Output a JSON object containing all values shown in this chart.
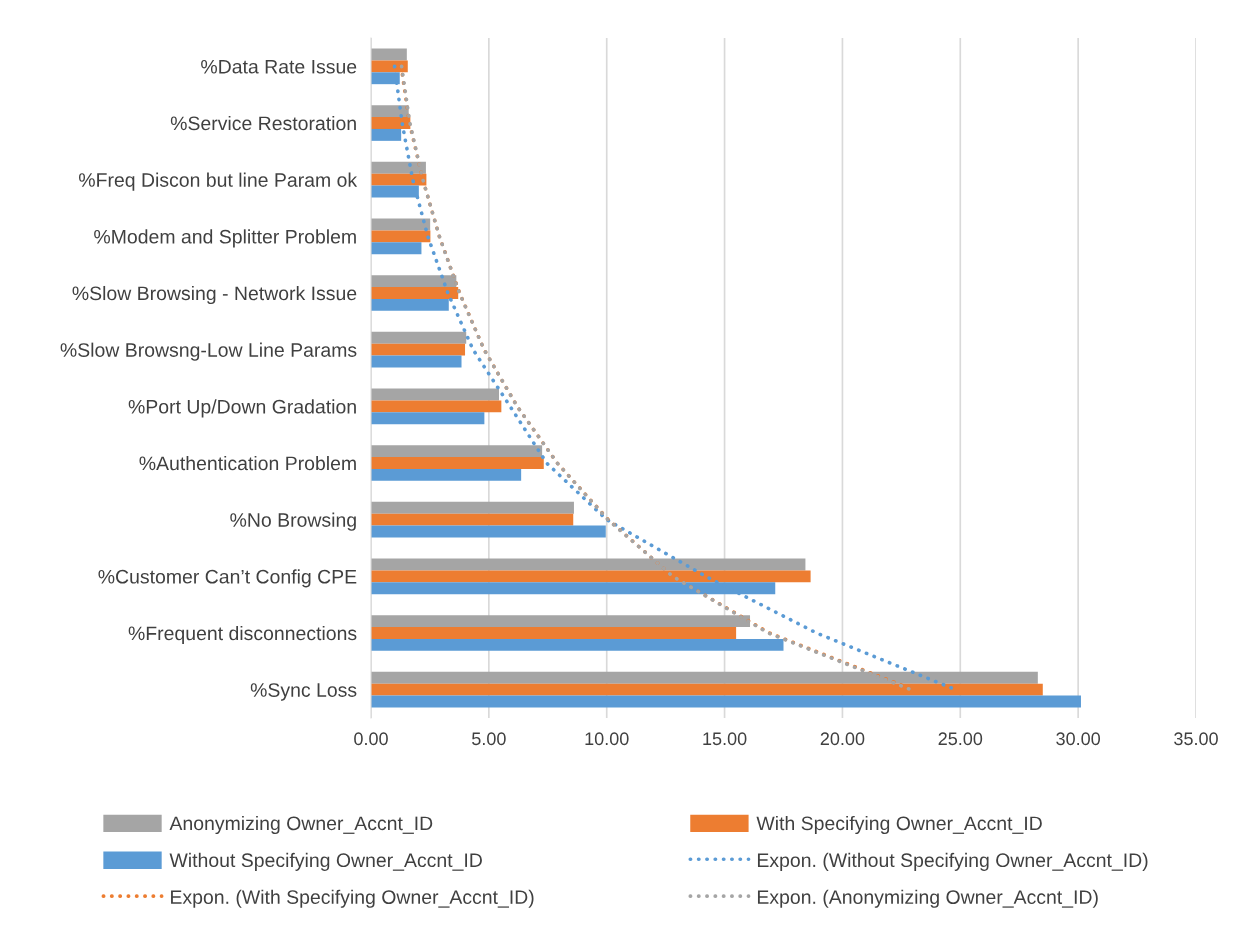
{
  "chart_data": {
    "type": "bar",
    "orientation": "horizontal",
    "categories": [
      "%Data Rate Issue",
      "%Service Restoration",
      "%Freq Discon but line Param ok",
      "%Modem and Splitter Problem",
      "%Slow Browsing - Network Issue",
      "%Slow Browsng-Low Line Params",
      "%Port Up/Down Gradation",
      "%Authentication Problem",
      "%No Browsing",
      "%Customer Can’t Config CPE",
      "%Frequent disconnections",
      "%Sync Loss"
    ],
    "series": [
      {
        "name": "Anonymizing Owner_Accnt_ID",
        "color": "#a5a5a5",
        "values": [
          1.52,
          1.6,
          2.33,
          2.51,
          3.62,
          4.04,
          5.43,
          7.26,
          8.61,
          18.43,
          16.08,
          28.29
        ]
      },
      {
        "name": "With Specifying Owner_Accnt_ID",
        "color": "#ed7d31",
        "values": [
          1.56,
          1.67,
          2.35,
          2.52,
          3.7,
          3.99,
          5.53,
          7.33,
          8.58,
          18.65,
          15.49,
          28.5
        ]
      },
      {
        "name": "Without Specifying Owner_Accnt_ID",
        "color": "#5b9bd5",
        "values": [
          1.22,
          1.28,
          2.03,
          2.14,
          3.3,
          3.84,
          4.81,
          6.37,
          9.96,
          17.15,
          17.5,
          30.12
        ]
      },
      {
        "name": "Expon. (Without Specifying Owner_Accnt_ID)",
        "type": "line",
        "line_style": "dotted",
        "color": "#5b9bd5",
        "values": [
          1.0,
          1.32,
          1.77,
          2.41,
          3.26,
          4.33,
          5.9,
          7.45,
          10.0,
          14.2,
          18.9,
          24.8
        ]
      },
      {
        "name": "Expon. (With Specifying Owner_Accnt_ID)",
        "type": "line",
        "line_style": "dotted",
        "color": "#ed7d31",
        "values": [
          1.28,
          1.63,
          2.2,
          2.9,
          3.76,
          4.8,
          6.2,
          7.9,
          10.07,
          12.8,
          16.9,
          23.0
        ]
      },
      {
        "name": "Expon. (Anonymizing Owner_Accnt_ID)",
        "type": "line",
        "line_style": "dotted",
        "color": "#a5a5a5",
        "values": [
          1.3,
          1.65,
          2.2,
          2.9,
          3.75,
          4.8,
          6.2,
          7.9,
          10.05,
          12.8,
          16.85,
          22.9
        ]
      }
    ],
    "xlim": [
      0,
      35
    ],
    "xticks": [
      {
        "value": 0,
        "label": "0.00"
      },
      {
        "value": 5,
        "label": "5.00"
      },
      {
        "value": 10,
        "label": "10.00"
      },
      {
        "value": 15,
        "label": "15.00"
      },
      {
        "value": 20,
        "label": "20.00"
      },
      {
        "value": 25,
        "label": "25.00"
      },
      {
        "value": 30,
        "label": "30.00"
      },
      {
        "value": 35,
        "label": "35.00"
      }
    ],
    "grid": "x",
    "legend": "bottom"
  }
}
